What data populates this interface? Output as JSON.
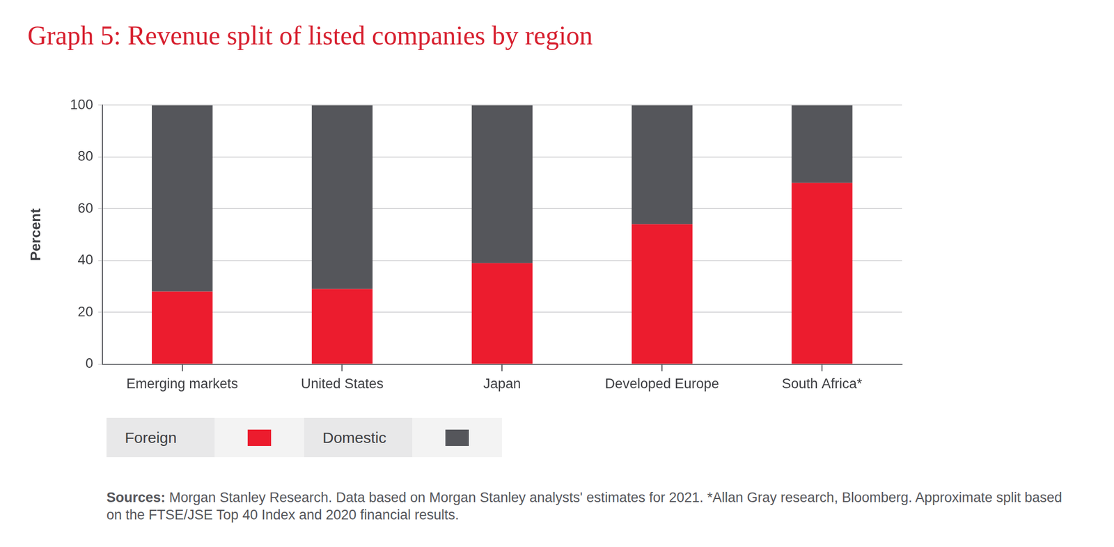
{
  "chart_data": {
    "type": "bar",
    "title": "Graph 5: Revenue split of listed companies by region",
    "y_label": "Percent",
    "categories": [
      "Emerging markets",
      "United States",
      "Japan",
      "Developed Europe",
      "South Africa*"
    ],
    "series": [
      {
        "name": "Foreign",
        "color": "#ec1c2e",
        "values": [
          28,
          29,
          39,
          54,
          70
        ]
      },
      {
        "name": "Domestic",
        "color": "#55565b",
        "values": [
          72,
          71,
          61,
          46,
          30
        ]
      }
    ],
    "stacked": true,
    "ylim": [
      0,
      100
    ],
    "yticks": [
      0,
      20,
      40,
      60,
      80,
      100
    ],
    "grid": true,
    "legend": "bottom-left",
    "source_label": "Sources:",
    "source": "Morgan Stanley Research. Data based on Morgan Stanley analysts' estimates for 2021. *Allan Gray research, Bloomberg. Approximate split based on the FTSE/JSE Top 40 Index and 2020 financial results."
  }
}
